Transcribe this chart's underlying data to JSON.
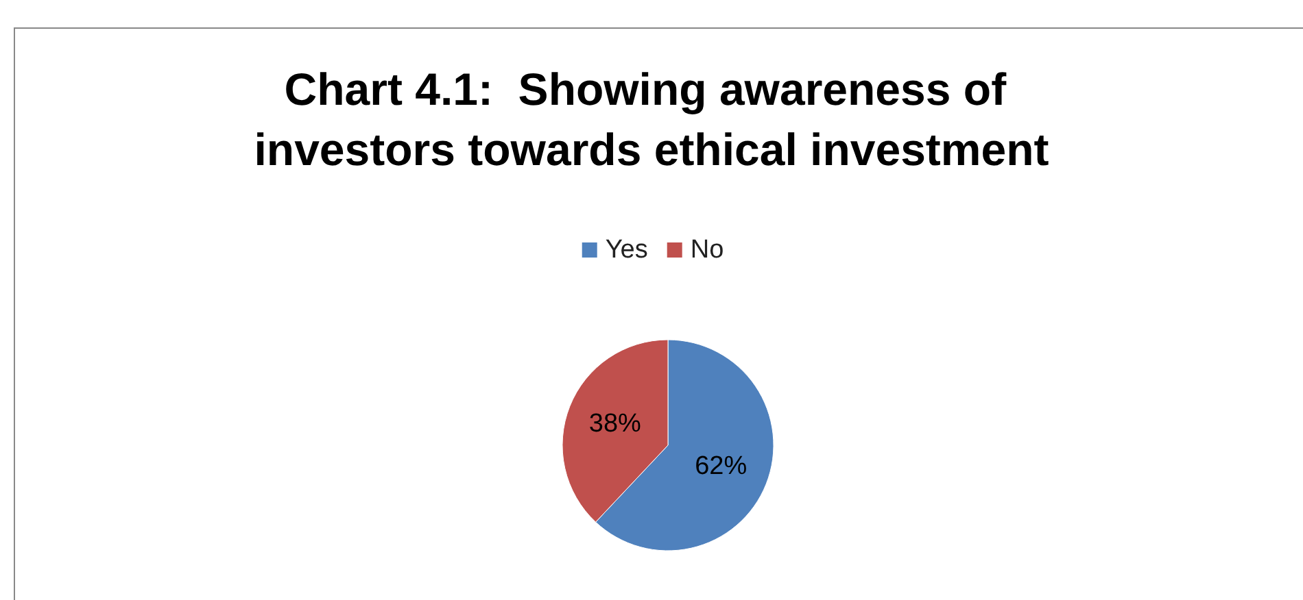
{
  "chart_data": {
    "type": "pie",
    "title": "Chart 4.1:  Showing awareness of investors towards ethical investment",
    "categories": [
      "Yes",
      "No"
    ],
    "values": [
      62,
      38
    ],
    "colors": [
      "#4f81bd",
      "#c0504d"
    ],
    "value_labels": [
      "62%",
      "38%"
    ],
    "legend": "top"
  }
}
